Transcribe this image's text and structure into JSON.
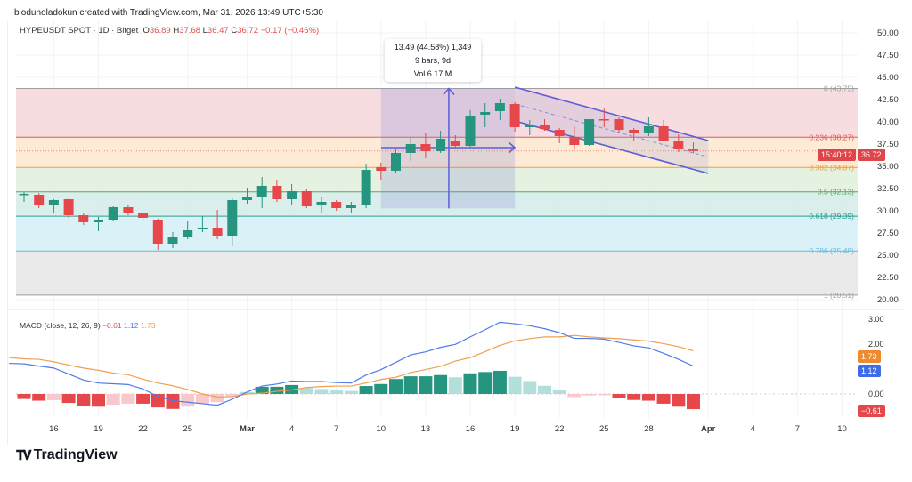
{
  "credit": "biodunoladokun created with TradingView.com, Mar 31, 2026 13:49 UTC+5:30",
  "symbol": {
    "title": "HYPEUSDT SPOT · 1D · Bitget",
    "o_label": "O",
    "o": "36.89",
    "h_label": "H",
    "h": "37.68",
    "l_label": "L",
    "l": "36.47",
    "c_label": "C",
    "c": "36.72",
    "change": "−0.17 (−0.46%)"
  },
  "last_price": {
    "value": "36.72",
    "countdown": "15:40:12"
  },
  "measure": {
    "line1": "13.49 (44.58%) 1,349",
    "line2": "9 bars, 9d",
    "line3": "Vol 6.17 M",
    "from_day": 24,
    "to_day": 33,
    "low": 30.26,
    "high": 43.75
  },
  "price_axis": [
    "50.00",
    "47.50",
    "45.00",
    "42.50",
    "40.00",
    "37.50",
    "35.00",
    "32.50",
    "30.00",
    "27.50",
    "25.00",
    "22.50",
    "20.00"
  ],
  "fib_levels": [
    {
      "label": "0 (43.75)",
      "ratio": 0,
      "price": 43.75,
      "color": "#9e9e9e",
      "fill": "#f6d6da"
    },
    {
      "label": "0.236 (38.27)",
      "ratio": 0.236,
      "price": 38.27,
      "color": "#e05a5a",
      "fill": "#fde8cf"
    },
    {
      "label": "0.382 (34.87)",
      "ratio": 0.382,
      "price": 34.87,
      "color": "#f0a030",
      "fill": "#e2f0dc"
    },
    {
      "label": "0.5 (32.13)",
      "ratio": 0.5,
      "price": 32.13,
      "color": "#5aa65a",
      "fill": "#d4ebe8"
    },
    {
      "label": "0.618 (29.39)",
      "ratio": 0.618,
      "price": 29.39,
      "color": "#2a9d8f",
      "fill": "#d4f0f6"
    },
    {
      "label": "0.786 (25.48)",
      "ratio": 0.786,
      "price": 25.48,
      "color": "#6bb8dc",
      "fill": "#e6e6e6"
    },
    {
      "label": "1 (20.51)",
      "ratio": 1,
      "price": 20.51,
      "color": "#9e9e9e",
      "fill": null
    }
  ],
  "colors": {
    "up": "#26957f",
    "down": "#e5474b",
    "up_light": "#b2dfdb",
    "down_light": "#f8c8cc",
    "macd": "#4f7be8",
    "signal": "#f0a050",
    "channel": "#5b5fd6"
  },
  "chart_data": {
    "type": "candlestick",
    "start_date": "Feb 14",
    "x_ticks": [
      {
        "label": "16",
        "day": 2
      },
      {
        "label": "19",
        "day": 5
      },
      {
        "label": "22",
        "day": 8
      },
      {
        "label": "25",
        "day": 11
      },
      {
        "label": "Mar",
        "day": 15
      },
      {
        "label": "4",
        "day": 18
      },
      {
        "label": "7",
        "day": 21
      },
      {
        "label": "10",
        "day": 24
      },
      {
        "label": "13",
        "day": 27
      },
      {
        "label": "16",
        "day": 30
      },
      {
        "label": "19",
        "day": 33
      },
      {
        "label": "22",
        "day": 36
      },
      {
        "label": "25",
        "day": 39
      },
      {
        "label": "28",
        "day": 42
      },
      {
        "label": "Apr",
        "day": 46
      },
      {
        "label": "4",
        "day": 49
      },
      {
        "label": "7",
        "day": 52
      },
      {
        "label": "10",
        "day": 55
      }
    ],
    "ylim": [
      20,
      50
    ],
    "ohlc": [
      [
        31.8,
        32.1,
        31.0,
        31.9
      ],
      [
        31.8,
        32.0,
        30.3,
        30.7
      ],
      [
        30.7,
        31.3,
        29.8,
        31.2
      ],
      [
        31.3,
        31.4,
        29.2,
        29.5
      ],
      [
        29.5,
        29.7,
        28.4,
        28.7
      ],
      [
        28.7,
        29.3,
        27.7,
        29.0
      ],
      [
        29.0,
        30.5,
        28.8,
        30.4
      ],
      [
        30.4,
        30.7,
        29.5,
        29.7
      ],
      [
        29.7,
        29.8,
        28.9,
        29.2
      ],
      [
        29.0,
        29.1,
        25.6,
        26.3
      ],
      [
        26.3,
        27.6,
        25.8,
        27.0
      ],
      [
        27.0,
        28.9,
        26.8,
        27.8
      ],
      [
        27.9,
        29.4,
        27.6,
        28.1
      ],
      [
        28.1,
        30.1,
        26.8,
        27.2
      ],
      [
        27.2,
        31.4,
        26.0,
        31.2
      ],
      [
        31.2,
        32.6,
        30.8,
        31.5
      ],
      [
        31.5,
        33.8,
        30.3,
        32.8
      ],
      [
        32.8,
        33.5,
        31.0,
        31.3
      ],
      [
        31.3,
        33.0,
        30.7,
        32.2
      ],
      [
        32.2,
        32.4,
        30.3,
        30.5
      ],
      [
        30.6,
        31.6,
        29.8,
        31.0
      ],
      [
        31.0,
        31.2,
        30.0,
        30.3
      ],
      [
        30.3,
        31.0,
        29.8,
        30.6
      ],
      [
        30.6,
        35.3,
        30.3,
        34.6
      ],
      [
        34.9,
        35.4,
        33.5,
        34.5
      ],
      [
        34.5,
        36.9,
        34.2,
        36.5
      ],
      [
        36.5,
        38.3,
        35.6,
        37.5
      ],
      [
        37.5,
        38.7,
        35.9,
        36.7
      ],
      [
        36.7,
        39.0,
        36.5,
        38.1
      ],
      [
        37.9,
        38.5,
        36.9,
        37.3
      ],
      [
        37.3,
        41.3,
        37.1,
        40.7
      ],
      [
        40.8,
        42.1,
        39.4,
        41.1
      ],
      [
        41.2,
        42.6,
        40.2,
        42.1
      ],
      [
        42.0,
        42.2,
        38.9,
        39.4
      ],
      [
        39.4,
        40.2,
        38.5,
        39.6
      ],
      [
        39.6,
        40.3,
        39.0,
        39.2
      ],
      [
        39.1,
        39.3,
        37.6,
        38.4
      ],
      [
        38.3,
        39.5,
        36.9,
        37.4
      ],
      [
        37.4,
        40.3,
        37.3,
        40.3
      ],
      [
        40.3,
        41.6,
        39.4,
        40.2
      ],
      [
        40.3,
        40.5,
        38.8,
        39.1
      ],
      [
        39.1,
        39.3,
        37.9,
        38.7
      ],
      [
        38.7,
        40.5,
        38.4,
        39.5
      ],
      [
        39.5,
        40.2,
        37.9,
        37.9
      ],
      [
        37.9,
        38.6,
        36.6,
        37.0
      ],
      [
        36.89,
        37.68,
        36.47,
        36.72
      ]
    ],
    "channel": {
      "upper": [
        [
          33,
          43.9
        ],
        [
          46,
          37.9
        ]
      ],
      "lower": [
        [
          33,
          40.1
        ],
        [
          46,
          34.2
        ]
      ]
    },
    "macd": {
      "title": "MACD (close, 12, 26, 9)",
      "hist_value": "−0.61",
      "macd_value": "1.12",
      "signal_value": "1.73",
      "axis": [
        "3.00",
        "2.00",
        "0.00"
      ],
      "ylim": [
        -1.2,
        3.3
      ],
      "macd_line": [
        1.21,
        1.12,
        1.04,
        0.8,
        0.56,
        0.44,
        0.41,
        0.38,
        0.2,
        -0.1,
        -0.27,
        -0.33,
        -0.39,
        -0.45,
        -0.21,
        0.08,
        0.32,
        0.4,
        0.52,
        0.5,
        0.5,
        0.46,
        0.44,
        0.76,
        0.98,
        1.27,
        1.57,
        1.69,
        1.87,
        1.99,
        2.29,
        2.58,
        2.88,
        2.82,
        2.74,
        2.62,
        2.46,
        2.23,
        2.23,
        2.2,
        2.07,
        1.93,
        1.85,
        1.63,
        1.39,
        1.12
      ],
      "histogram": [
        -0.2,
        -0.27,
        -0.25,
        -0.36,
        -0.48,
        -0.51,
        -0.43,
        -0.39,
        -0.39,
        -0.54,
        -0.6,
        -0.51,
        -0.39,
        -0.33,
        -0.1,
        0.08,
        0.29,
        0.29,
        0.36,
        0.24,
        0.2,
        0.14,
        0.12,
        0.32,
        0.4,
        0.6,
        0.71,
        0.71,
        0.76,
        0.67,
        0.83,
        0.88,
        0.93,
        0.69,
        0.52,
        0.33,
        0.17,
        -0.12,
        -0.06,
        -0.05,
        -0.15,
        -0.24,
        -0.27,
        -0.39,
        -0.51,
        -0.61
      ]
    }
  },
  "brand": "TradingView"
}
